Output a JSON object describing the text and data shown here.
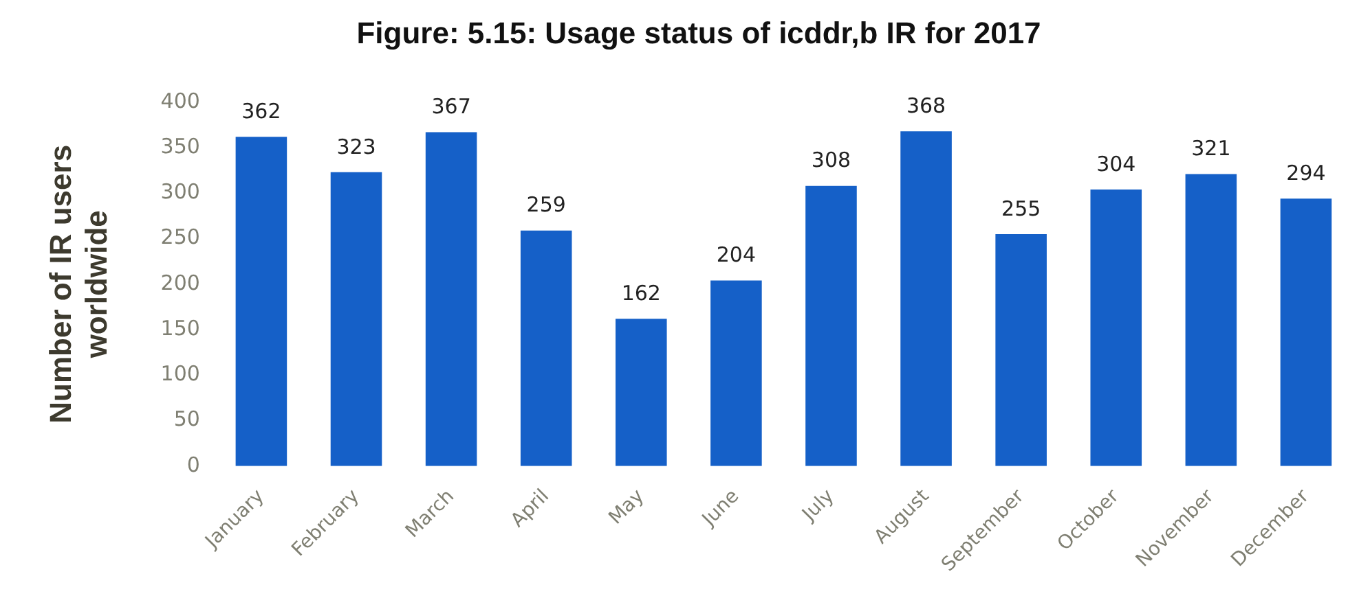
{
  "chart_data": {
    "type": "bar",
    "title": "Figure: 5.15: Usage status of icddr,b IR for 2017",
    "ylabel": "Number of IR users worldwide",
    "categories": [
      "January",
      "February",
      "March",
      "April",
      "May",
      "June",
      "July",
      "August",
      "September",
      "October",
      "November",
      "December"
    ],
    "values": [
      362,
      323,
      367,
      259,
      162,
      204,
      308,
      368,
      255,
      304,
      321,
      294
    ],
    "color": "#1560c8",
    "ylim": [
      0,
      400
    ],
    "yticks": [
      0,
      50,
      100,
      150,
      200,
      250,
      300,
      350,
      400
    ],
    "grid": false,
    "legend": false,
    "data_labels": true
  }
}
